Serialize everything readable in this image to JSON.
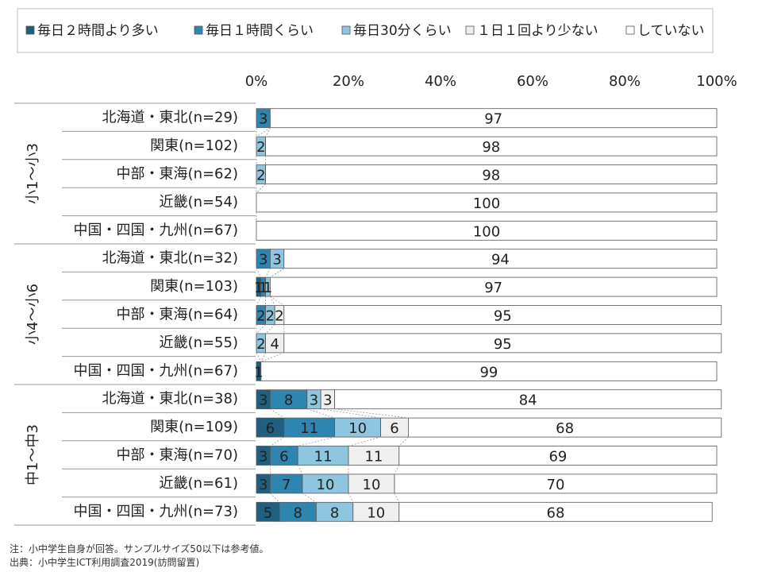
{
  "chart_data": {
    "type": "bar",
    "orientation": "horizontal",
    "stacked": true,
    "percent_scale": true,
    "xlim": [
      0,
      100
    ],
    "x_ticks": [
      "0%",
      "20%",
      "40%",
      "60%",
      "80%",
      "100%"
    ],
    "grid": false,
    "legend_position": "top",
    "series": [
      {
        "name": "毎日２時間より多い",
        "color": "#1f5f7f"
      },
      {
        "name": "毎日１時間くらい",
        "color": "#2e86b0"
      },
      {
        "name": "毎日30分くらい",
        "color": "#8fc6df"
      },
      {
        "name": "１日１回より少ない",
        "color": "#efefef"
      },
      {
        "name": "していない",
        "color": "#ffffff"
      }
    ],
    "groups": [
      {
        "label": "小1〜小3",
        "rows": [
          {
            "label": "北海道・東北(n=29)",
            "values": [
              0,
              3,
              0,
              0,
              97
            ]
          },
          {
            "label": "関東(n=102)",
            "values": [
              0,
              0,
              2,
              0,
              98
            ]
          },
          {
            "label": "中部・東海(n=62)",
            "values": [
              0,
              0,
              2,
              0,
              98
            ]
          },
          {
            "label": "近畿(n=54)",
            "values": [
              0,
              0,
              0,
              0,
              100
            ]
          },
          {
            "label": "中国・四国・九州(n=67)",
            "values": [
              0,
              0,
              0,
              0,
              100
            ]
          }
        ]
      },
      {
        "label": "小4〜小6",
        "rows": [
          {
            "label": "北海道・東北(n=32)",
            "values": [
              0,
              3,
              3,
              0,
              94
            ]
          },
          {
            "label": "関東(n=103)",
            "values": [
              1,
              1,
              1,
              0,
              97
            ]
          },
          {
            "label": "中部・東海(n=64)",
            "values": [
              0,
              2,
              2,
              2,
              95
            ]
          },
          {
            "label": "近畿(n=55)",
            "values": [
              0,
              0,
              2,
              4,
              95
            ]
          },
          {
            "label": "中国・四国・九州(n=67)",
            "values": [
              1,
              0,
              0,
              0,
              99
            ]
          }
        ]
      },
      {
        "label": "中1〜中3",
        "rows": [
          {
            "label": "北海道・東北(n=38)",
            "values": [
              3,
              8,
              3,
              3,
              84
            ]
          },
          {
            "label": "関東(n=109)",
            "values": [
              6,
              11,
              10,
              6,
              68
            ]
          },
          {
            "label": "中部・東海(n=70)",
            "values": [
              3,
              6,
              11,
              11,
              69
            ]
          },
          {
            "label": "近畿(n=61)",
            "values": [
              3,
              7,
              10,
              10,
              70
            ]
          },
          {
            "label": "中国・四国・九州(n=73)",
            "values": [
              5,
              8,
              8,
              10,
              68
            ]
          }
        ]
      }
    ]
  },
  "notes": {
    "note": "注：小中学生自身が回答。サンプルサイズ50以下は参考値。",
    "source": "出典：小中学生ICT利用調査2019(訪問留置)"
  }
}
